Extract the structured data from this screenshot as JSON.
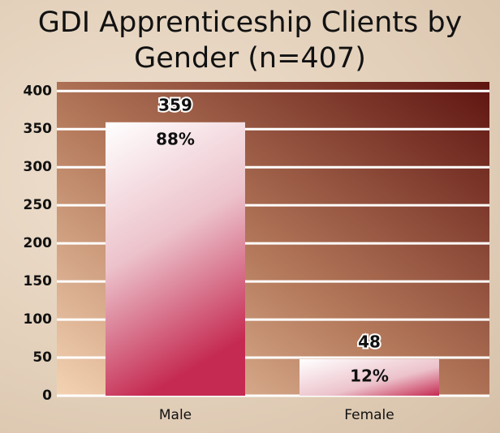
{
  "chart_data": {
    "type": "bar",
    "title": "GDI Apprenticeship Clients by Gender (n=407)",
    "categories": [
      "Male",
      "Female"
    ],
    "values": [
      359,
      48
    ],
    "percent_labels": [
      "88%",
      "12%"
    ],
    "ylim": [
      0,
      412
    ],
    "yticks": [
      0,
      50,
      100,
      150,
      200,
      250,
      300,
      350,
      400
    ],
    "grid": true
  }
}
